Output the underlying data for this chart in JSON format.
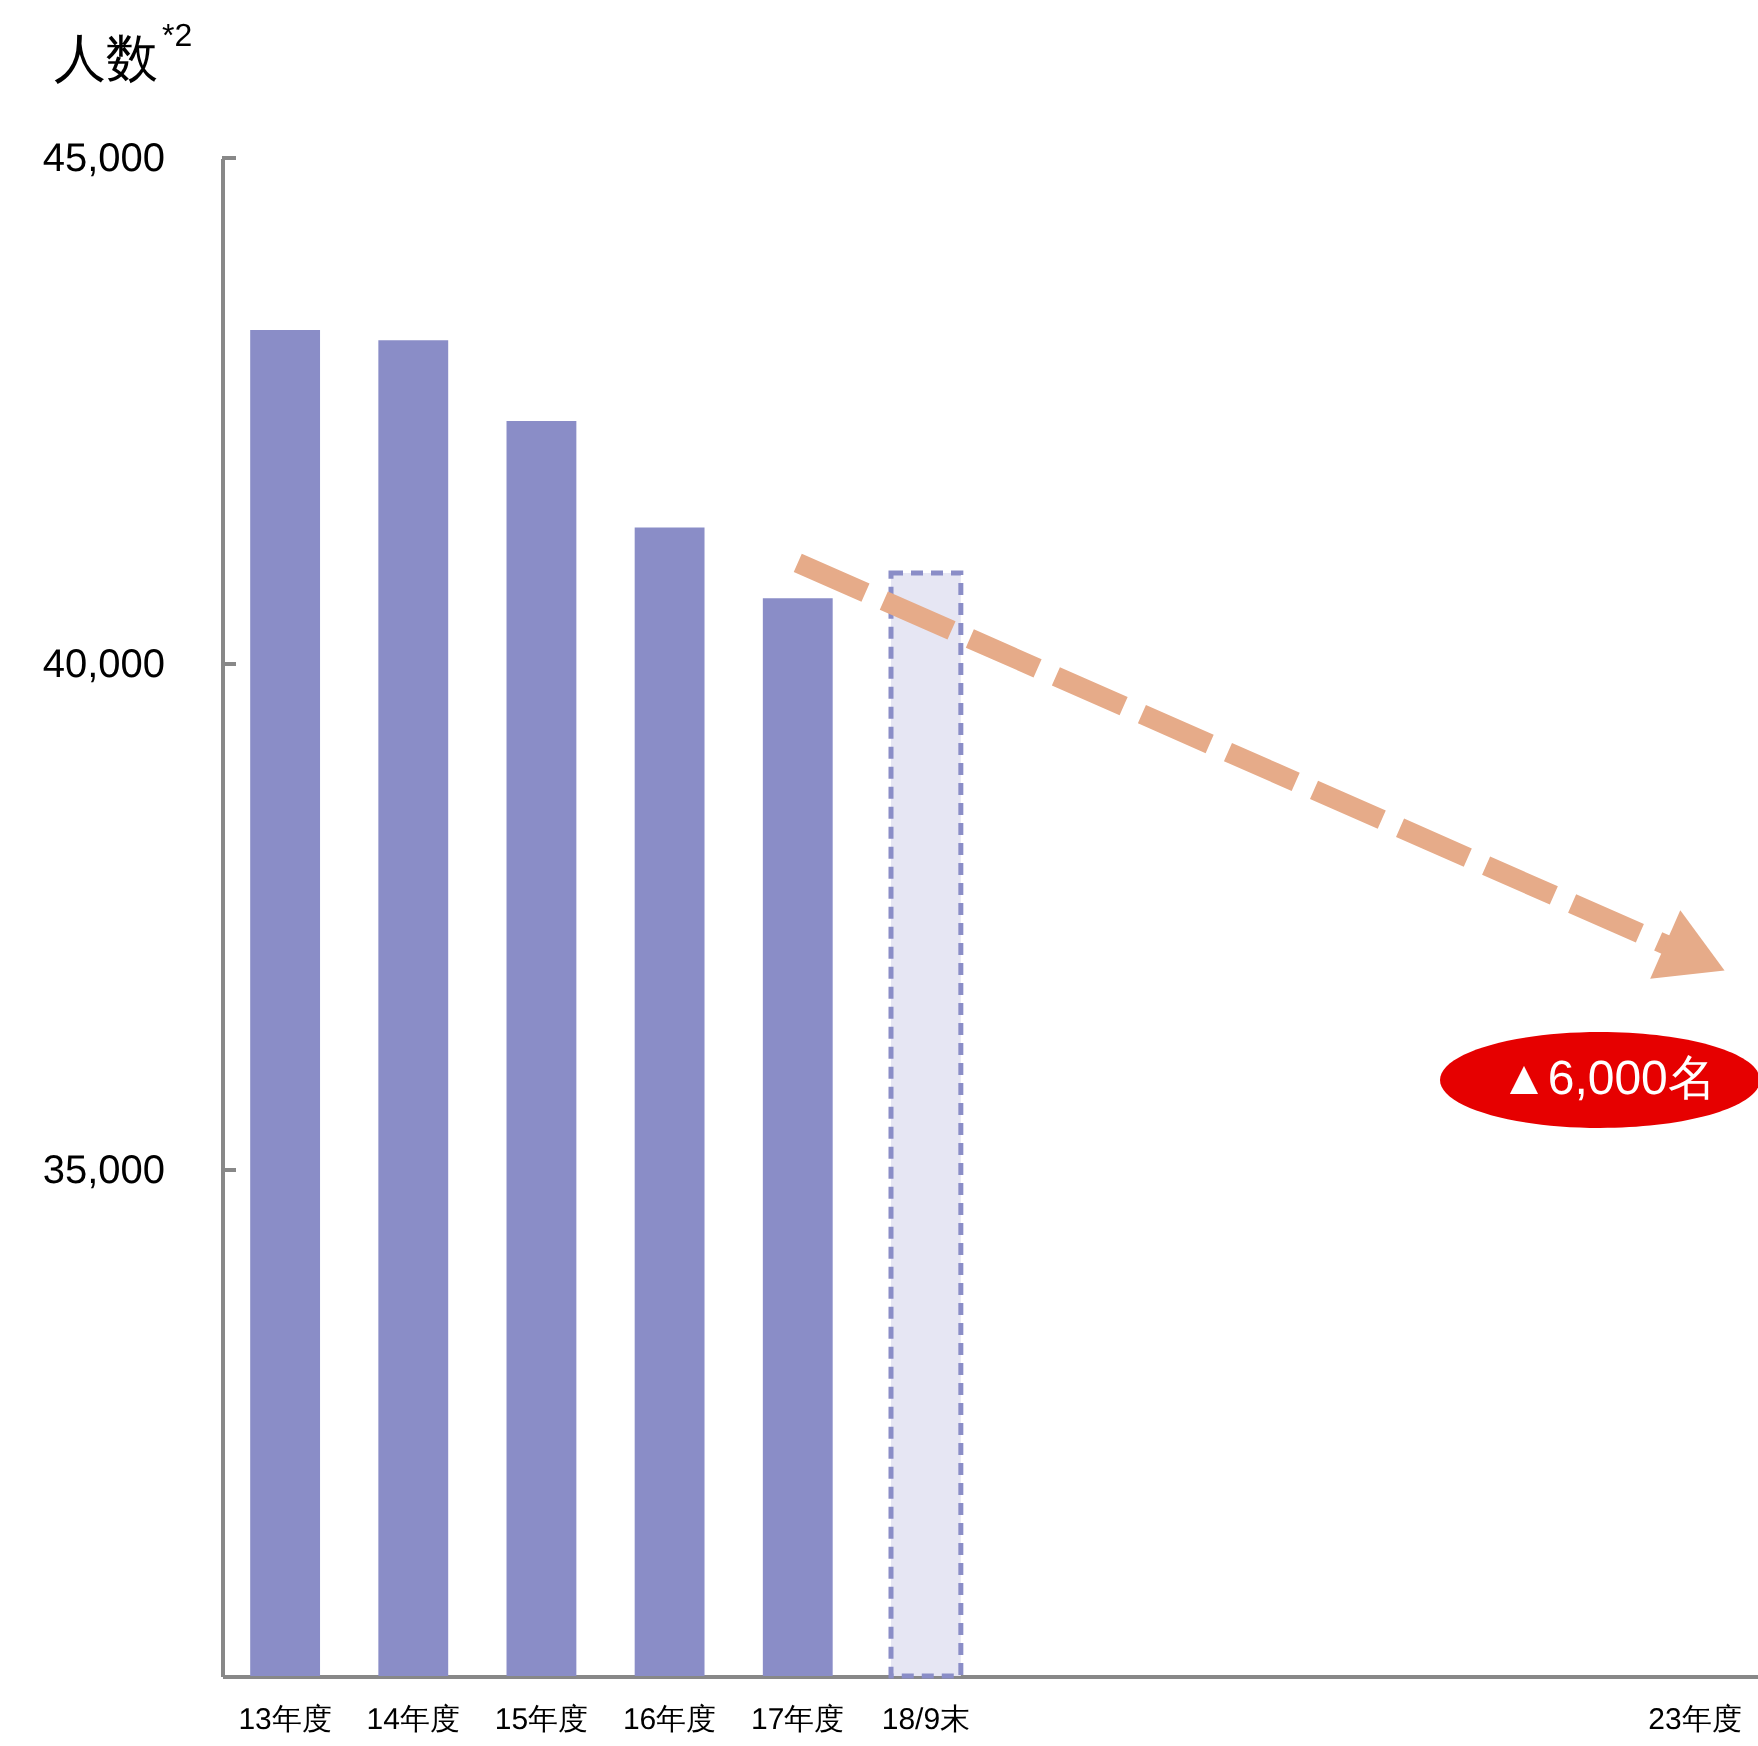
{
  "chart_data": {
    "type": "bar",
    "ylabel": "人数$^{*2}$",
    "categories": [
      "13年度",
      "14年度",
      "15年度",
      "16年度",
      "17年度",
      "18/9末",
      null,
      null,
      null,
      null,
      null,
      "23年度"
    ],
    "series": [
      {
        "color": "#8a8dc7",
        "values": [
          43300,
          43200,
          42400,
          41350,
          40650,
          null,
          null,
          null,
          null,
          null,
          null,
          null
        ]
      },
      {
        "color": "#e6e6f3",
        "line_style": "dashed",
        "values": [
          null,
          null,
          null,
          null,
          null,
          40900,
          null,
          null,
          null,
          null,
          null,
          null
        ]
      },
      {
        "type": "line",
        "color": "#e6ab89",
        "line_style": "dashed",
        "values": [
          null,
          null,
          null,
          null,
          41000,
          null,
          null,
          null,
          null,
          null,
          null,
          37100
        ]
      }
    ],
    "ylim": [
      30000,
      45000
    ],
    "yticks": [
      {
        "value": 35000,
        "label": "35,000"
      },
      {
        "value": 40000,
        "label": "40,000"
      },
      {
        "value": 45000,
        "label": "45,000"
      }
    ],
    "grid": false,
    "annotations": [
      "▲6,000名"
    ]
  }
}
